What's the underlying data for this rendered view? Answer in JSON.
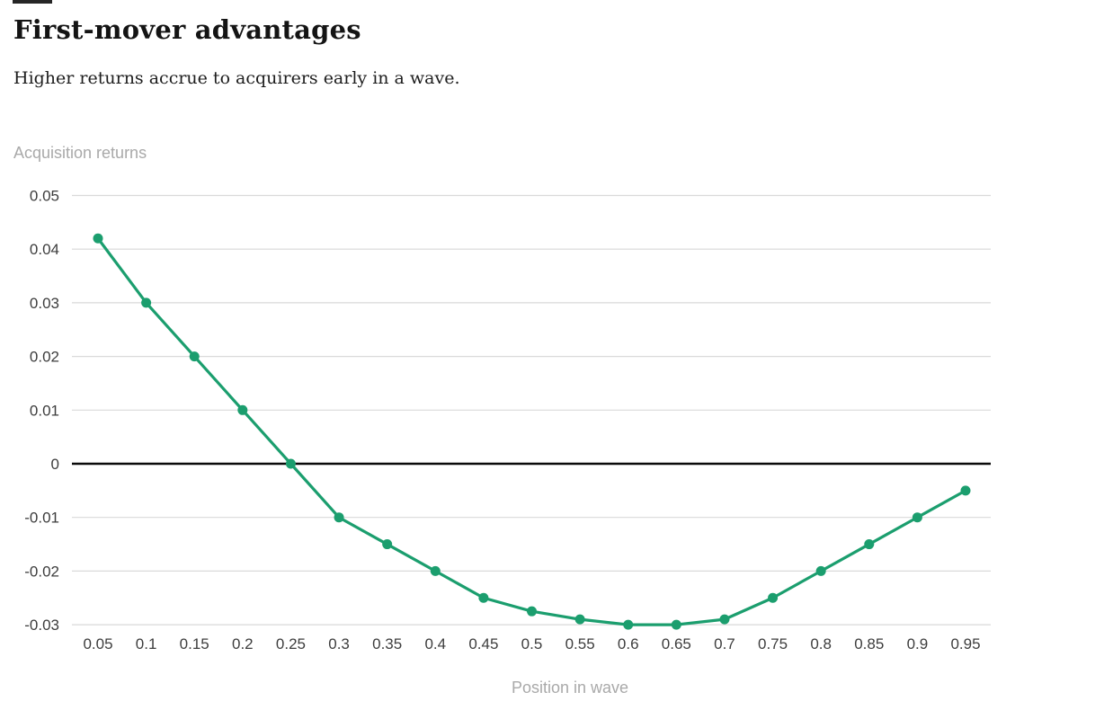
{
  "header": {
    "title": "First-mover advantages",
    "subtitle": "Higher returns accrue to acquirers early in a wave."
  },
  "chart_data": {
    "type": "line",
    "title": "First-mover advantages",
    "subtitle": "Higher returns accrue to acquirers early in a wave.",
    "xlabel": "Position in wave",
    "ylabel": "Acquisition returns",
    "x": [
      0.05,
      0.1,
      0.15,
      0.2,
      0.25,
      0.3,
      0.35,
      0.4,
      0.45,
      0.5,
      0.55,
      0.6,
      0.65,
      0.7,
      0.75,
      0.8,
      0.85,
      0.9,
      0.95
    ],
    "y": [
      0.042,
      0.03,
      0.02,
      0.01,
      0,
      -0.01,
      -0.015,
      -0.02,
      -0.025,
      -0.0275,
      -0.029,
      -0.03,
      -0.03,
      -0.029,
      -0.025,
      -0.02,
      -0.015,
      -0.01,
      -0.005
    ],
    "xtick_labels": [
      "0.05",
      "0.1",
      "0.15",
      "0.2",
      "0.25",
      "0.3",
      "0.35",
      "0.4",
      "0.45",
      "0.5",
      "0.55",
      "0.6",
      "0.65",
      "0.7",
      "0.75",
      "0.8",
      "0.85",
      "0.9",
      "0.95"
    ],
    "yticks": [
      0.05,
      0.04,
      0.03,
      0.02,
      0.01,
      0,
      -0.01,
      -0.02,
      -0.03
    ],
    "ytick_labels": [
      "0.05",
      "0.04",
      "0.03",
      "0.02",
      "0.01",
      "0",
      "-0.01",
      "-0.02",
      "-0.03"
    ],
    "ylim": [
      -0.0335,
      0.052
    ],
    "grid": "horizontal-only",
    "legend": "none",
    "markers": "filled-circles",
    "colors": {
      "line": "#1b9e6e",
      "marker": "#1b9e6e",
      "gridline": "#d9d9d9",
      "zero_line": "#0a0a0a",
      "tick_text": "#3d3d3d",
      "axis_title_text": "#a9a9a9",
      "title_text": "#141414",
      "kicker_bar": "#262626"
    }
  }
}
